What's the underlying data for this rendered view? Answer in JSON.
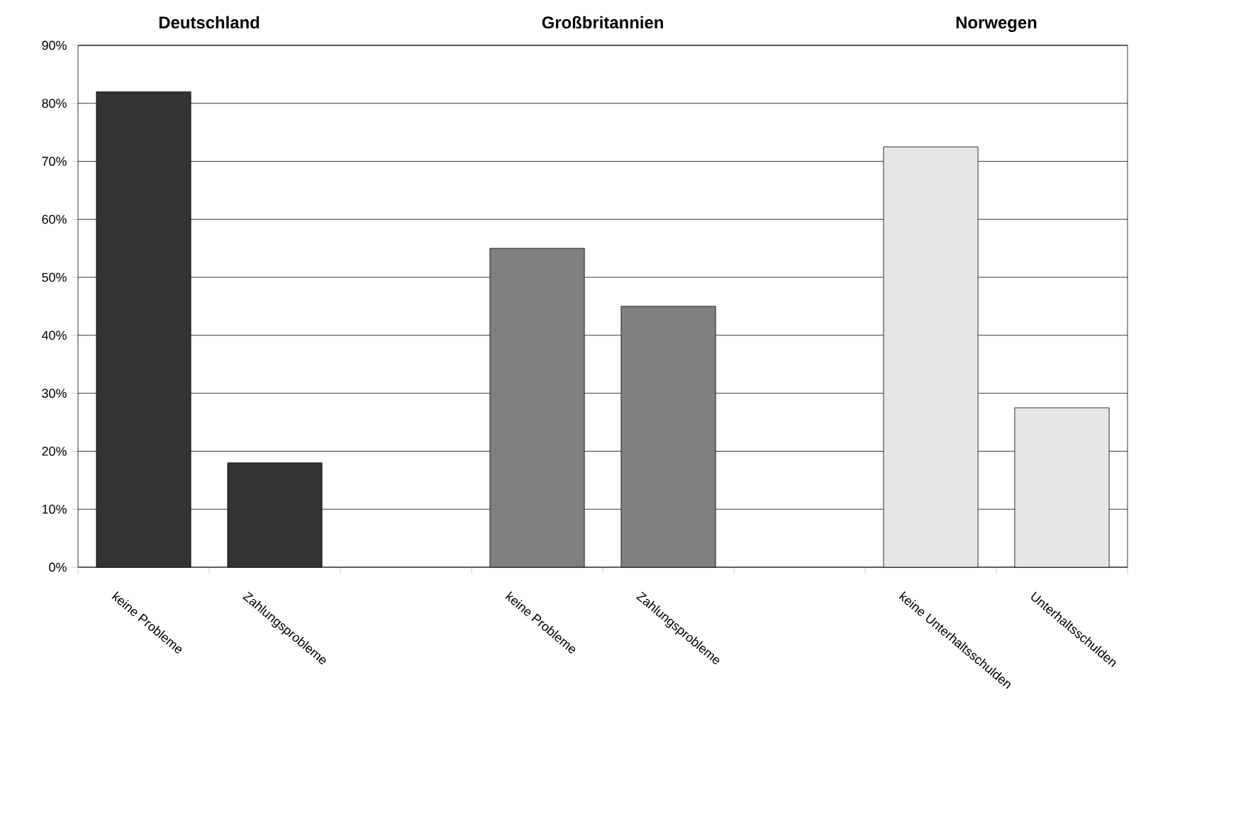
{
  "chart_data": {
    "type": "bar",
    "categories": [
      "keine Probleme",
      "Zahlungsprobleme",
      null,
      "keine Probleme",
      "Zahlungsprobleme",
      null,
      "keine Unterhaltsschulden",
      "Unterhaltsschulden"
    ],
    "values": [
      82,
      18,
      null,
      55,
      45,
      null,
      72.5,
      27.5
    ],
    "colors": [
      "#333333",
      "#333333",
      "#333333",
      "#808080",
      "#808080",
      "#808080",
      "#e6e6e6",
      "#e6e6e6"
    ],
    "ylim": [
      0,
      90
    ],
    "yticks": [
      {
        "value": 0,
        "label": "0%"
      },
      {
        "value": 10,
        "label": "10%"
      },
      {
        "value": 20,
        "label": "20%"
      },
      {
        "value": 30,
        "label": "30%"
      },
      {
        "value": 40,
        "label": "40%"
      },
      {
        "value": 50,
        "label": "50%"
      },
      {
        "value": 60,
        "label": "60%"
      },
      {
        "value": 70,
        "label": "70%"
      },
      {
        "value": 80,
        "label": "80%"
      },
      {
        "value": 90,
        "label": "90%"
      }
    ],
    "grid": "y",
    "annotations": [
      "Deutschland",
      "Großbritannien",
      "Norwegen"
    ]
  }
}
